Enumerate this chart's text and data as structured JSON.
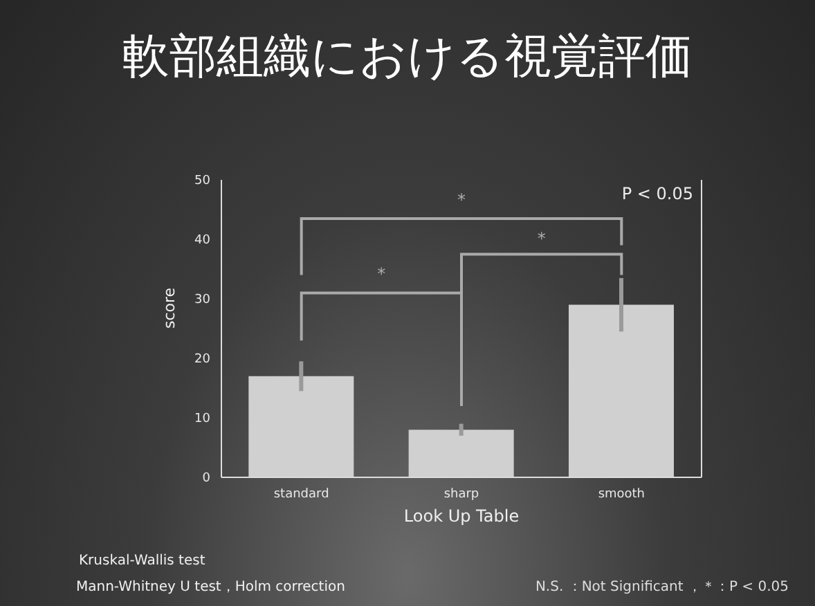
{
  "chart_data": {
    "type": "bar",
    "title": "軟部組織における視覚評価",
    "xlabel": "Look Up Table",
    "ylabel": "score",
    "categories": [
      "standard",
      "sharp",
      "smooth"
    ],
    "values": [
      17,
      8,
      29
    ],
    "errors": [
      2.5,
      1,
      4.5
    ],
    "color": "#d0d0d0",
    "ylim": [
      0,
      50
    ],
    "yticks": [
      0,
      10,
      20,
      30,
      40,
      50
    ],
    "grid": false,
    "annotations": [
      "P < 0.05",
      "*",
      "*",
      "*",
      "Kruskal-Wallis test",
      "Mann-Whitney U test，Holm correction",
      "N.S. ：Not Significant ，＊：P < 0.05"
    ]
  }
}
